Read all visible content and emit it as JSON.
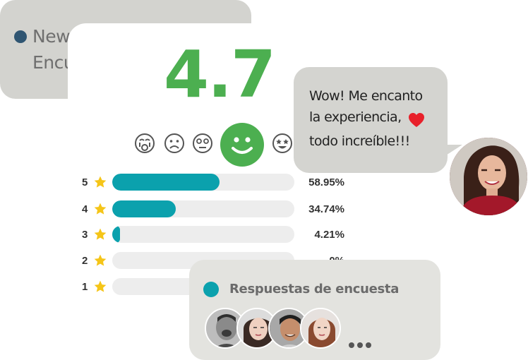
{
  "back_card": {
    "line1": "New",
    "line2": "Encu"
  },
  "rating": {
    "score": "4.7",
    "faces": [
      "crying-face",
      "frowning-face",
      "dizzy-face",
      "smiling-face",
      "star-struck-face"
    ],
    "selected_face": "smiling-face",
    "rows": [
      {
        "stars": "5",
        "percent_label": "58.95%",
        "fraction": 0.5895
      },
      {
        "stars": "4",
        "percent_label": "34.74%",
        "fraction": 0.3474
      },
      {
        "stars": "3",
        "percent_label": "4.21%",
        "fraction": 0.0421
      },
      {
        "stars": "2",
        "percent_label": "0%",
        "fraction": 0
      },
      {
        "stars": "1",
        "percent_label": "",
        "fraction": 0
      }
    ],
    "colors": {
      "score": "#4caf50",
      "bar": "#0ba1ad",
      "star": "#f5c518"
    }
  },
  "review_bubble": {
    "line1": "Wow! Me encanto",
    "line2": "la experiencia,",
    "line3": "todo increíble!!!",
    "heart_color": "#e8202a"
  },
  "responses_card": {
    "title": "Respuestas de encuesta",
    "avatars": [
      "avatar-1",
      "avatar-2",
      "avatar-3",
      "avatar-4"
    ]
  }
}
